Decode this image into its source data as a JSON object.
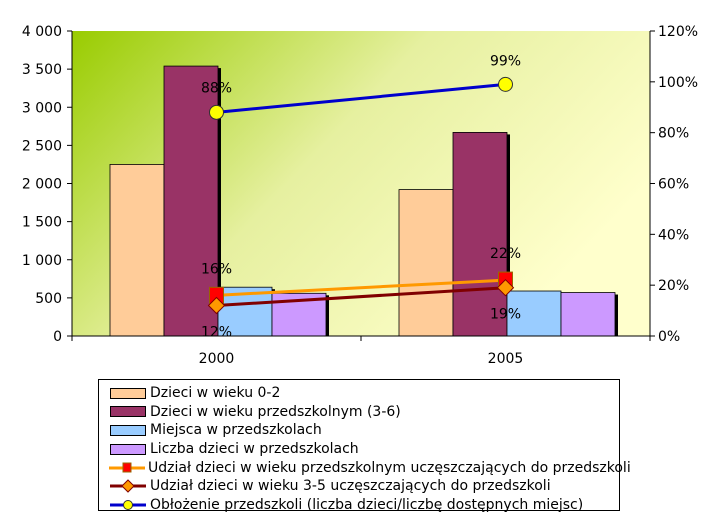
{
  "chart_data": {
    "type": "bar",
    "categories": [
      "2000",
      "2005"
    ],
    "bar_series": [
      {
        "name": "Dzieci w wieku 0-2",
        "color": "#ffcc99",
        "values": [
          2250,
          1920
        ]
      },
      {
        "name": "Dzieci w wieku przedszkolnym (3-6)",
        "color": "#993366",
        "values": [
          3540,
          2670
        ]
      },
      {
        "name": "Miejsca w przedszkolach",
        "color": "#99ccff",
        "values": [
          640,
          590
        ]
      },
      {
        "name": "Liczba dzieci w przedszkolach",
        "color": "#cc99ff",
        "values": [
          560,
          570
        ]
      }
    ],
    "line_series": [
      {
        "name": "Udział dzieci w wieku przedszkolnym uczęszczających do przedszkoli",
        "color": "#ff9900",
        "marker": "square",
        "marker_color": "#ff0000",
        "values": [
          0.16,
          0.22
        ],
        "labels": [
          "16%",
          "22%"
        ]
      },
      {
        "name": "Udział dzieci w wieku 3-5 uczęszczających do przedszkoli",
        "color": "#800000",
        "marker": "diamond",
        "marker_color": "#ff9900",
        "values": [
          0.12,
          0.19
        ],
        "labels": [
          "12%",
          "19%"
        ]
      },
      {
        "name": "Obłożenie przedszkoli (liczba dzieci/liczbę dostępnych miejsc)",
        "color": "#0000cc",
        "marker": "circle",
        "marker_color": "#ffff00",
        "values": [
          0.88,
          0.99
        ],
        "labels": [
          "88%",
          "99%"
        ]
      }
    ],
    "y_left": {
      "min": 0,
      "max": 4000,
      "ticks": [
        0,
        500,
        1000,
        1500,
        2000,
        2500,
        3000,
        3500,
        4000
      ],
      "tick_labels": [
        "0",
        "500",
        "1 000",
        "1 500",
        "2 000",
        "2 500",
        "3 000",
        "3 500",
        "4 000"
      ]
    },
    "y_right": {
      "min": 0,
      "max": 1.2,
      "ticks": [
        0,
        0.2,
        0.4,
        0.6,
        0.8,
        1.0,
        1.2
      ],
      "tick_labels": [
        "0%",
        "20%",
        "40%",
        "60%",
        "80%",
        "100%",
        "120%"
      ]
    },
    "legend_position": "bottom",
    "grid": false
  }
}
